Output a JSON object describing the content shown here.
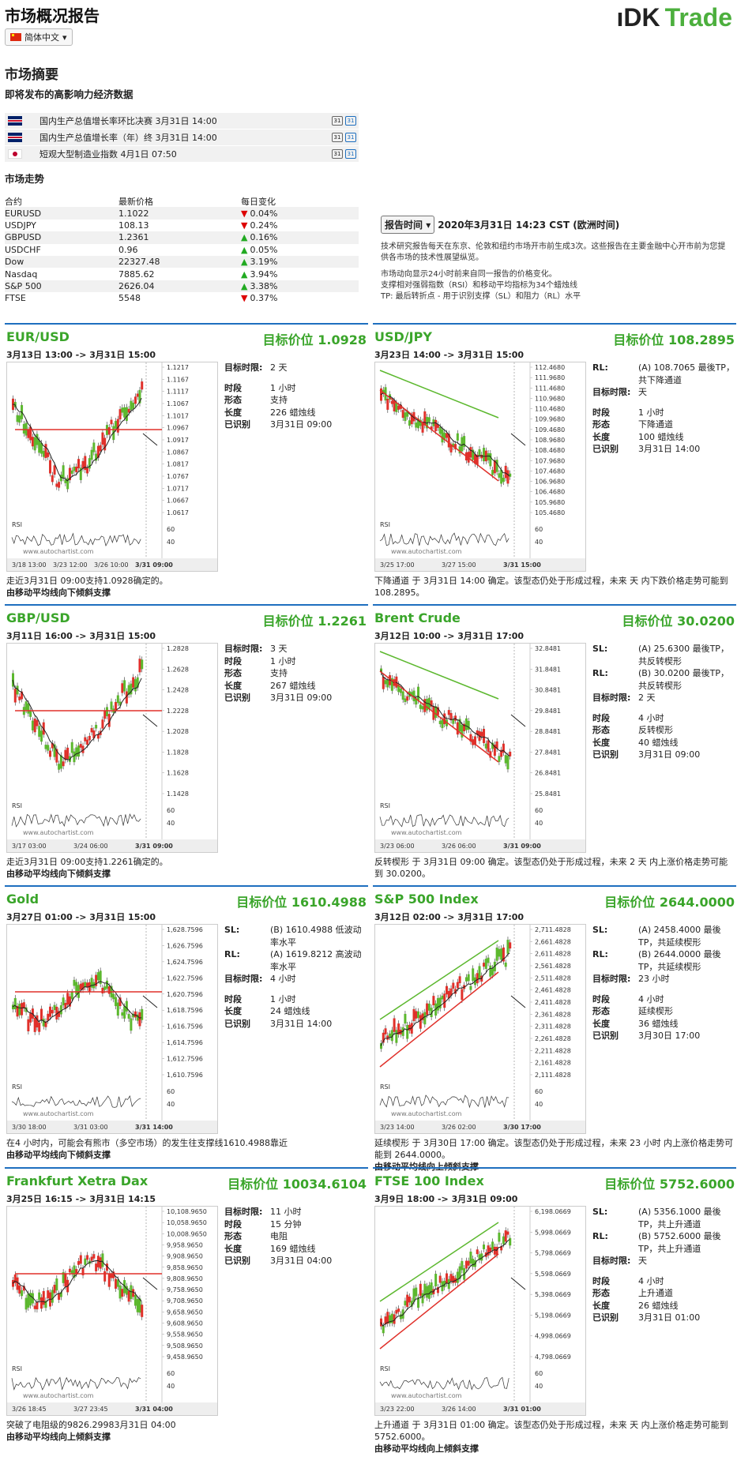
{
  "header": {
    "title": "市场概况报告",
    "lang": "简体中文",
    "logo_a": "ıDK",
    "logo_b": "Trade"
  },
  "summary": {
    "title": "市场摘要",
    "events_title": "即将发布的高影响力经济数据",
    "events": [
      {
        "flag": "uk",
        "text": "国内生产总值增长率环比决赛 3月31日 14:00"
      },
      {
        "flag": "uk",
        "text": "国内生产总值增长率（年）终 3月31日 14:00"
      },
      {
        "flag": "jp",
        "text": "短观大型制造业指数 4月1日 07:50"
      }
    ],
    "trend_title": "市场走势",
    "headers": [
      "合约",
      "最新价格",
      "每日变化"
    ],
    "rows": [
      {
        "c": "EURUSD",
        "p": "1.1022",
        "d": "0.04%",
        "dir": "down"
      },
      {
        "c": "USDJPY",
        "p": "108.13",
        "d": "0.24%",
        "dir": "down"
      },
      {
        "c": "GBPUSD",
        "p": "1.2361",
        "d": "0.16%",
        "dir": "up"
      },
      {
        "c": "USDCHF",
        "p": "0.96",
        "d": "0.05%",
        "dir": "up"
      },
      {
        "c": "Dow",
        "p": "22327.48",
        "d": "3.19%",
        "dir": "up"
      },
      {
        "c": "Nasdaq",
        "p": "7885.62",
        "d": "3.94%",
        "dir": "up"
      },
      {
        "c": "S&P 500",
        "p": "2626.04",
        "d": "3.38%",
        "dir": "up"
      },
      {
        "c": "FTSE",
        "p": "5548",
        "d": "0.37%",
        "dir": "down"
      }
    ]
  },
  "report": {
    "btn": "报告时间",
    "time": "2020年3月31日 14:23 CST (欧洲时间)",
    "p1": "技术研究报告每天在东京、伦敦和纽约市场开市前生成3次。这些报告在主要金融中心开市前为您提供各市场的技术性展望纵览。",
    "p2": "市场动向显示24小时前来自同一报告的价格变化。",
    "p3": "支撑相对强弱指数（RSI）和移动平均指标为34个蜡烛线",
    "p4": "TP: 最后转折点 - 用于识别支撑（SL）和阻力（RL）水平"
  },
  "cards": [
    {
      "name": "EUR/USD",
      "target": "目标价位 1.0928",
      "range": "3月13日 13:00 -> 3月31日 15:00",
      "info": [
        [
          "目标时限:",
          "2 天"
        ],
        [
          "",
          ""
        ],
        [
          "时段",
          "1 小时"
        ],
        [
          "形态",
          "支持"
        ],
        [
          "长度",
          "226 蜡烛线"
        ],
        [
          "已识别",
          "3月31日 09:00"
        ]
      ],
      "desc": "走近3月31日 09:00支持1.0928确定的。",
      "desc2": "由移动平均线向下倾斜支撑",
      "ticks": [
        "1.1217",
        "1.1167",
        "1.1117",
        "1.1067",
        "1.1017",
        "1.0967",
        "1.0917",
        "1.0867",
        "1.0817",
        "1.0767",
        "1.0717",
        "1.0667",
        "1.0617"
      ],
      "xl": [
        "3/18 13:00",
        "3/23 12:00",
        "3/26 10:00",
        "3/31 09:00"
      ],
      "seed": 1,
      "trend": "v"
    },
    {
      "name": "USD/JPY",
      "target": "目标价位 108.2895",
      "range": "3月23日 14:00 -> 3月31日 15:00",
      "info": [
        [
          "RL:",
          "(A) 108.7065 最後TP，共下降通道"
        ],
        [
          "目标时限:",
          "天"
        ],
        [
          "",
          ""
        ],
        [
          "时段",
          "1 小时"
        ],
        [
          "形态",
          "下降通道"
        ],
        [
          "长度",
          "100 蜡烛线"
        ],
        [
          "已识别",
          "3月31日 14:00"
        ]
      ],
      "desc": "下降通道 于 3月31日 14:00 确定。该型态仍处于形成过程，未来 天 内下跌价格走势可能到 108.2895。",
      "desc2": "",
      "ticks": [
        "112.4680",
        "111.9680",
        "111.4680",
        "110.9680",
        "110.4680",
        "109.9680",
        "109.4680",
        "108.9680",
        "108.4680",
        "107.9680",
        "107.4680",
        "106.9680",
        "106.4680",
        "105.9680",
        "105.4680"
      ],
      "xl": [
        "3/25 17:00",
        "3/27 15:00",
        "3/31 15:00"
      ],
      "seed": 2,
      "trend": "down"
    },
    {
      "name": "GBP/USD",
      "target": "目标价位 1.2261",
      "range": "3月11日 16:00 -> 3月31日 15:00",
      "info": [
        [
          "目标时限:",
          "3 天"
        ],
        [
          "时段",
          "1 小时"
        ],
        [
          "形态",
          "支持"
        ],
        [
          "长度",
          "267 蜡烛线"
        ],
        [
          "已识别",
          "3月31日 09:00"
        ]
      ],
      "desc": "走近3月31日 09:00支持1.2261确定的。",
      "desc2": "由移动平均线向下倾斜支撑",
      "ticks": [
        "1.2828",
        "1.2628",
        "1.2428",
        "1.2228",
        "1.2028",
        "1.1828",
        "1.1628",
        "1.1428"
      ],
      "xl": [
        "3/17 03:00",
        "3/24 06:00",
        "3/31 09:00"
      ],
      "seed": 3,
      "trend": "v"
    },
    {
      "name": "Brent Crude",
      "target": "目标价位 30.0200",
      "range": "3月12日 10:00 -> 3月31日 17:00",
      "info": [
        [
          "SL:",
          "(A) 25.6300 最後TP，共反转楔形"
        ],
        [
          "RL:",
          "(B) 30.0200 最後TP，共反转楔形"
        ],
        [
          "目标时限:",
          "2 天"
        ],
        [
          "",
          ""
        ],
        [
          "时段",
          "4 小时"
        ],
        [
          "形态",
          "反转楔形"
        ],
        [
          "长度",
          "40 蜡烛线"
        ],
        [
          "已识别",
          "3月31日 09:00"
        ]
      ],
      "desc": "反转楔形 于 3月31日 09:00 确定。该型态仍处于形成过程，未来 2 天 内上涨价格走势可能到 30.0200。",
      "desc2": "",
      "ticks": [
        "32.8481",
        "31.8481",
        "30.8481",
        "29.8481",
        "28.8481",
        "27.8481",
        "26.8481",
        "25.8481"
      ],
      "xl": [
        "3/23 06:00",
        "3/26 06:00",
        "3/31 09:00"
      ],
      "seed": 4,
      "trend": "down"
    },
    {
      "name": "Gold",
      "target": "目标价位 1610.4988",
      "range": "3月27日 01:00 -> 3月31日 15:00",
      "info": [
        [
          "SL:",
          "(B) 1610.4988 低波动率水平"
        ],
        [
          "RL:",
          "(A) 1619.8212 高波动率水平"
        ],
        [
          "目标时限:",
          "4 小时"
        ],
        [
          "",
          ""
        ],
        [
          "时段",
          "1 小时"
        ],
        [
          "长度",
          "24 蜡烛线"
        ],
        [
          "已识别",
          "3月31日 14:00"
        ]
      ],
      "desc": "在4 小时内，可能会有熊市（多空市场）的发生往支撑线1610.4988靠近",
      "desc2": "由移动平均线向下倾斜支撑",
      "ticks": [
        "1,628.7596",
        "1,626.7596",
        "1,624.7596",
        "1,622.7596",
        "1,620.7596",
        "1,618.7596",
        "1,616.7596",
        "1,614.7596",
        "1,612.7596",
        "1,610.7596"
      ],
      "xl": [
        "3/30 18:00",
        "3/31 03:00",
        "3/31 14:00"
      ],
      "seed": 5,
      "trend": "flat"
    },
    {
      "name": "S&P 500 Index",
      "target": "目标价位 2644.0000",
      "range": "3月12日 02:00 -> 3月31日 17:00",
      "info": [
        [
          "SL:",
          "(A) 2458.4000 最後TP，共延续楔形"
        ],
        [
          "RL:",
          "(B) 2644.0000 最後TP，共延续楔形"
        ],
        [
          "目标时限:",
          "23 小时"
        ],
        [
          "",
          ""
        ],
        [
          "时段",
          "4 小时"
        ],
        [
          "形态",
          "延续楔形"
        ],
        [
          "长度",
          "36 蜡烛线"
        ],
        [
          "已识别",
          "3月30日 17:00"
        ]
      ],
      "desc": "延续楔形 于 3月30日 17:00 确定。该型态仍处于形成过程，未来 23 小时 内上涨价格走势可能到 2644.0000。",
      "desc2": "由移动平均线向上倾斜支撑",
      "ticks": [
        "2,711.4828",
        "2,661.4828",
        "2,611.4828",
        "2,561.4828",
        "2,511.4828",
        "2,461.4828",
        "2,411.4828",
        "2,361.4828",
        "2,311.4828",
        "2,261.4828",
        "2,211.4828",
        "2,161.4828",
        "2,111.4828"
      ],
      "xl": [
        "3/23 14:00",
        "3/26 02:00",
        "3/30 17:00"
      ],
      "seed": 6,
      "trend": "up"
    },
    {
      "name": "Frankfurt Xetra Dax",
      "target": "目标价位 10034.6104",
      "range": "3月25日 16:15 -> 3月31日 14:15",
      "info": [
        [
          "目标时限:",
          "11 小时"
        ],
        [
          "时段",
          "15 分钟"
        ],
        [
          "形态",
          "电阻"
        ],
        [
          "长度",
          "169 蜡烛线"
        ],
        [
          "已识别",
          "3月31日 04:00"
        ]
      ],
      "desc": "突破了电阻级的9826.29983月31日 04:00",
      "desc2": "由移动平均线向上倾斜支撑",
      "ticks": [
        "10,108.9650",
        "10,058.9650",
        "10,008.9650",
        "9,958.9650",
        "9,908.9650",
        "9,858.9650",
        "9,808.9650",
        "9,758.9650",
        "9,708.9650",
        "9,658.9650",
        "9,608.9650",
        "9,558.9650",
        "9,508.9650",
        "9,458.9650"
      ],
      "xl": [
        "3/26 18:45",
        "3/27 23:45",
        "3/31 04:00"
      ],
      "seed": 7,
      "trend": "flat"
    },
    {
      "name": "FTSE 100 Index",
      "target": "目标价位 5752.6000",
      "range": "3月9日 18:00 -> 3月31日 09:00",
      "info": [
        [
          "SL:",
          "(A) 5356.1000 最後TP，共上升通道"
        ],
        [
          "RL:",
          "(B) 5752.6000 最後TP，共上升通道"
        ],
        [
          "目标时限:",
          "天"
        ],
        [
          "",
          ""
        ],
        [
          "时段",
          "4 小时"
        ],
        [
          "形态",
          "上升通道"
        ],
        [
          "长度",
          "26 蜡烛线"
        ],
        [
          "已识别",
          "3月31日 01:00"
        ]
      ],
      "desc": "上升通道 于 3月31日 01:00 确定。该型态仍处于形成过程，未来 天 内上涨价格走势可能到 5752.6000。",
      "desc2": "由移动平均线向上倾斜支撑",
      "ticks": [
        "6,198.0669",
        "5,998.0669",
        "5,798.0669",
        "5,598.0669",
        "5,398.0669",
        "5,198.0669",
        "4,998.0669",
        "4,798.0669"
      ],
      "xl": [
        "3/23 22:00",
        "3/26 14:00",
        "3/31 01:00"
      ],
      "seed": 8,
      "trend": "up"
    }
  ],
  "labels": {
    "rsi": "RSI",
    "wm": "www.autochartist.com",
    "r60": "60",
    "r40": "40"
  }
}
